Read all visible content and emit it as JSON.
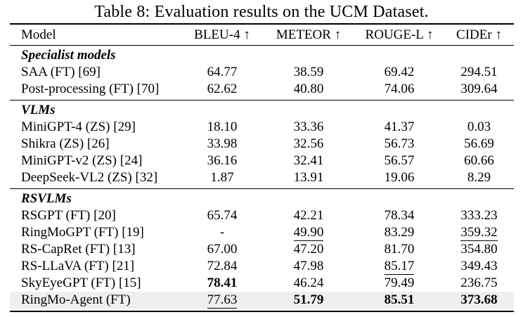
{
  "page": {
    "title": "Table 8: Evaluation results on the UCM Dataset."
  },
  "table": {
    "header": {
      "model": "Model",
      "metrics": [
        "BLEU-4 ↑",
        "METEOR ↑",
        "ROUGE-L ↑",
        "CIDEr ↑"
      ]
    },
    "highlight_color": "#efefee",
    "sections": [
      {
        "label": "Specialist models",
        "rows": [
          {
            "model": "SAA (FT) [69]",
            "values": [
              "64.77",
              "38.59",
              "69.42",
              "294.51"
            ],
            "styles": [
              "",
              "",
              "",
              ""
            ],
            "highlight": false
          },
          {
            "model": "Post-processing (FT) [70]",
            "values": [
              "62.62",
              "40.80",
              "74.06",
              "309.64"
            ],
            "styles": [
              "",
              "",
              "",
              ""
            ],
            "highlight": false
          }
        ]
      },
      {
        "label": "VLMs",
        "rows": [
          {
            "model": "MiniGPT-4 (ZS) [29]",
            "values": [
              "18.10",
              "33.36",
              "41.37",
              "0.03"
            ],
            "styles": [
              "",
              "",
              "",
              ""
            ],
            "highlight": false
          },
          {
            "model": "Shikra (ZS) [26]",
            "values": [
              "33.98",
              "32.56",
              "56.73",
              "56.69"
            ],
            "styles": [
              "",
              "",
              "",
              ""
            ],
            "highlight": false
          },
          {
            "model": "MiniGPT-v2 (ZS) [24]",
            "values": [
              "36.16",
              "32.41",
              "56.57",
              "60.66"
            ],
            "styles": [
              "",
              "",
              "",
              ""
            ],
            "highlight": false
          },
          {
            "model": "DeepSeek-VL2 (ZS) [32]",
            "values": [
              "1.87",
              "13.91",
              "19.06",
              "8.29"
            ],
            "styles": [
              "",
              "",
              "",
              ""
            ],
            "highlight": false
          }
        ]
      },
      {
        "label": "RSVLMs",
        "rows": [
          {
            "model": "RSGPT (FT) [20]",
            "values": [
              "65.74",
              "42.21",
              "78.34",
              "333.23"
            ],
            "styles": [
              "",
              "",
              "",
              ""
            ],
            "highlight": false
          },
          {
            "model": "RingMoGPT (FT) [19]",
            "values": [
              "-",
              "49.90",
              "83.29",
              "359.32"
            ],
            "styles": [
              "",
              "underline",
              "",
              "underline"
            ],
            "highlight": false
          },
          {
            "model": "RS-CapRet (FT) [13]",
            "values": [
              "67.00",
              "47.20",
              "81.70",
              "354.80"
            ],
            "styles": [
              "",
              "",
              "",
              ""
            ],
            "highlight": false
          },
          {
            "model": "RS-LLaVA (FT) [21]",
            "values": [
              "72.84",
              "47.98",
              "85.17",
              "349.43"
            ],
            "styles": [
              "",
              "",
              "underline",
              ""
            ],
            "highlight": false
          },
          {
            "model": "SkyEyeGPT (FT) [15]",
            "values": [
              "78.41",
              "46.24",
              "79.49",
              "236.75"
            ],
            "styles": [
              "bold",
              "",
              "",
              ""
            ],
            "highlight": false
          },
          {
            "model": "RingMo-Agent (FT)",
            "values": [
              "77.63",
              "51.79",
              "85.51",
              "373.68"
            ],
            "styles": [
              "underline",
              "bold",
              "bold",
              "bold"
            ],
            "highlight": true
          }
        ]
      }
    ]
  }
}
